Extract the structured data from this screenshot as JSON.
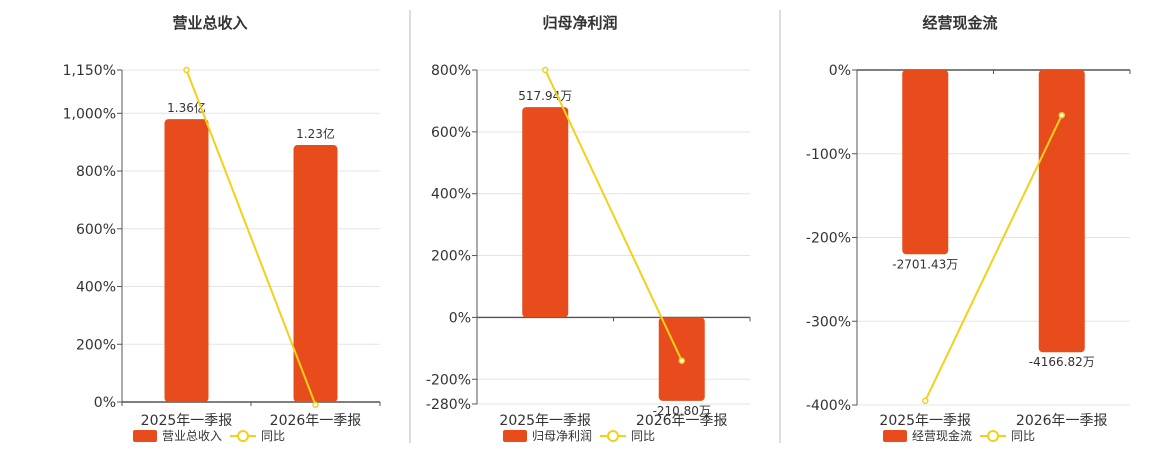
{
  "colors": {
    "bar": "#e84c1c",
    "line": "#f2d11a",
    "grid": "#e3e3ee",
    "axis": "#555555",
    "divider": "#bbbbbb"
  },
  "chart_data": [
    {
      "type": "bar",
      "title": "营业总收入",
      "categories": [
        "2025年一季报",
        "2026年一季报"
      ],
      "bar_series": {
        "name": "营业总收入",
        "values": [
          980,
          890
        ],
        "labels": [
          "1.36亿",
          "1.23亿"
        ]
      },
      "line_series": {
        "name": "同比",
        "values": [
          1150,
          -10
        ]
      },
      "ylim": [
        0,
        1150
      ],
      "yticks": [
        0,
        200,
        400,
        600,
        800,
        1000,
        1150
      ],
      "ytick_labels": [
        "0%",
        "200%",
        "400%",
        "600%",
        "800%",
        "1,000%",
        "1,150%"
      ],
      "grid": true,
      "legend": "bottom"
    },
    {
      "type": "bar",
      "title": "归母净利润",
      "categories": [
        "2025年一季报",
        "2026年一季报"
      ],
      "bar_series": {
        "name": "归母净利润",
        "values": [
          680,
          -270
        ],
        "labels": [
          "517.94万",
          "-210.80万"
        ]
      },
      "line_series": {
        "name": "同比",
        "values": [
          800,
          -140
        ]
      },
      "ylim": [
        -280,
        800
      ],
      "yticks": [
        -280,
        -200,
        0,
        200,
        400,
        600,
        800
      ],
      "ytick_labels": [
        "-280%",
        "-200%",
        "0%",
        "200%",
        "400%",
        "600%",
        "800%"
      ],
      "grid": true,
      "legend": "bottom"
    },
    {
      "type": "bar",
      "title": "经营现金流",
      "categories": [
        "2025年一季报",
        "2026年一季报"
      ],
      "bar_series": {
        "name": "经营现金流",
        "values": [
          -220,
          -337
        ],
        "labels": [
          "-2701.43万",
          "-4166.82万"
        ]
      },
      "line_series": {
        "name": "同比",
        "values": [
          -395,
          -54
        ]
      },
      "ylim": [
        -400,
        0
      ],
      "yticks": [
        -400,
        -300,
        -200,
        -100,
        0
      ],
      "ytick_labels": [
        "-400%",
        "-300%",
        "-200%",
        "-100%",
        "0%"
      ],
      "grid": true,
      "legend": "bottom"
    }
  ]
}
